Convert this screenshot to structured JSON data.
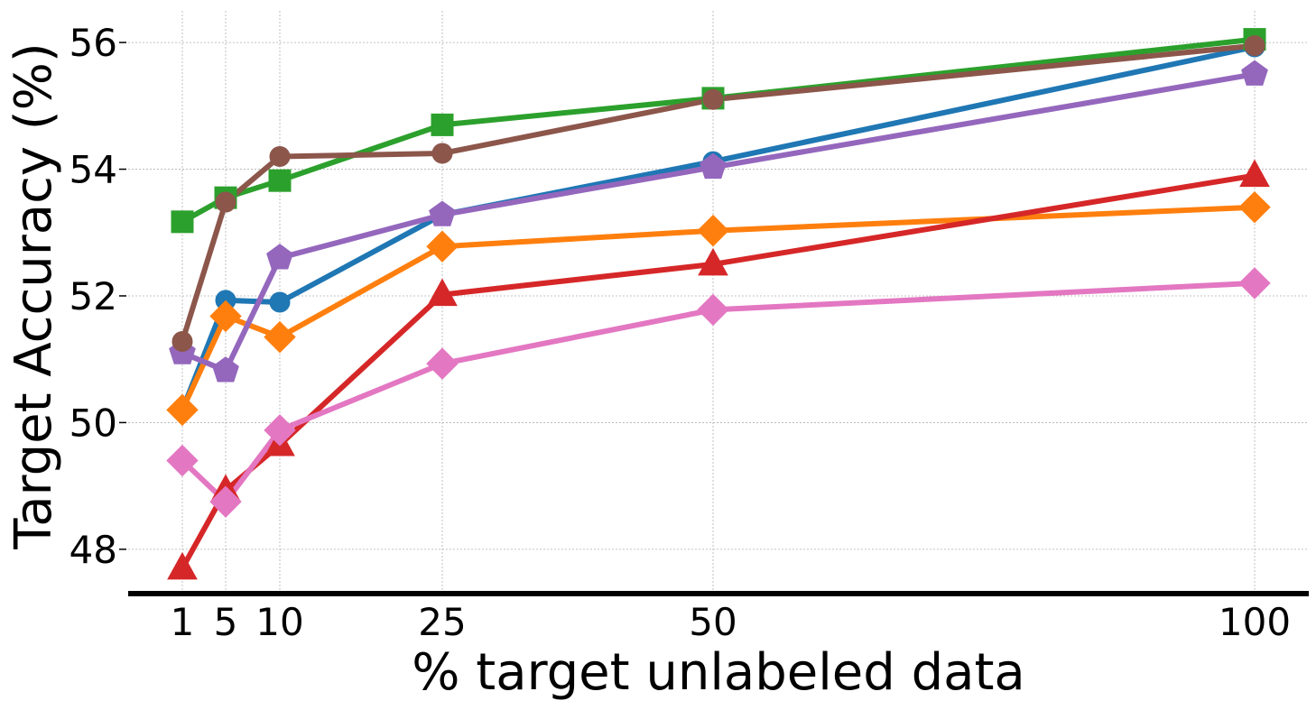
{
  "chart_data": {
    "type": "line",
    "title": "",
    "xlabel": "% target unlabeled data",
    "ylabel": "Target Accuracy (%)",
    "x": [
      1,
      5,
      10,
      25,
      50,
      100
    ],
    "x_ticks": [
      "1",
      "5",
      "10",
      "25",
      "50",
      "100"
    ],
    "y_ticks": [
      "48",
      "50",
      "52",
      "54",
      "56"
    ],
    "y_tick_values": [
      48,
      50,
      52,
      54,
      56
    ],
    "xlim": [
      -4,
      105
    ],
    "ylim": [
      47.3,
      56.5
    ],
    "grid": true,
    "legend": "none",
    "series": [
      {
        "name": "blue",
        "color": "#1f77b4",
        "marker": "circle",
        "values": [
          50.2,
          51.93,
          51.9,
          53.28,
          54.12,
          55.93
        ]
      },
      {
        "name": "orange",
        "color": "#ff7f0e",
        "marker": "diamond",
        "values": [
          50.2,
          51.68,
          51.35,
          52.78,
          53.03,
          53.4
        ]
      },
      {
        "name": "green",
        "color": "#2ca02c",
        "marker": "square",
        "values": [
          53.17,
          53.55,
          53.82,
          54.7,
          55.12,
          56.05
        ]
      },
      {
        "name": "red",
        "color": "#d62728",
        "marker": "triangle",
        "values": [
          47.7,
          48.93,
          49.65,
          52.02,
          52.5,
          53.9
        ]
      },
      {
        "name": "purple",
        "color": "#9467bd",
        "marker": "pentagon",
        "values": [
          51.1,
          50.82,
          52.6,
          53.28,
          54.03,
          55.5
        ]
      },
      {
        "name": "brown",
        "color": "#8c564b",
        "marker": "circle",
        "values": [
          51.28,
          53.48,
          54.2,
          54.25,
          55.1,
          55.95
        ]
      },
      {
        "name": "pink",
        "color": "#e377c2",
        "marker": "diamond",
        "values": [
          49.4,
          48.75,
          49.88,
          50.93,
          51.78,
          52.2
        ]
      }
    ]
  }
}
